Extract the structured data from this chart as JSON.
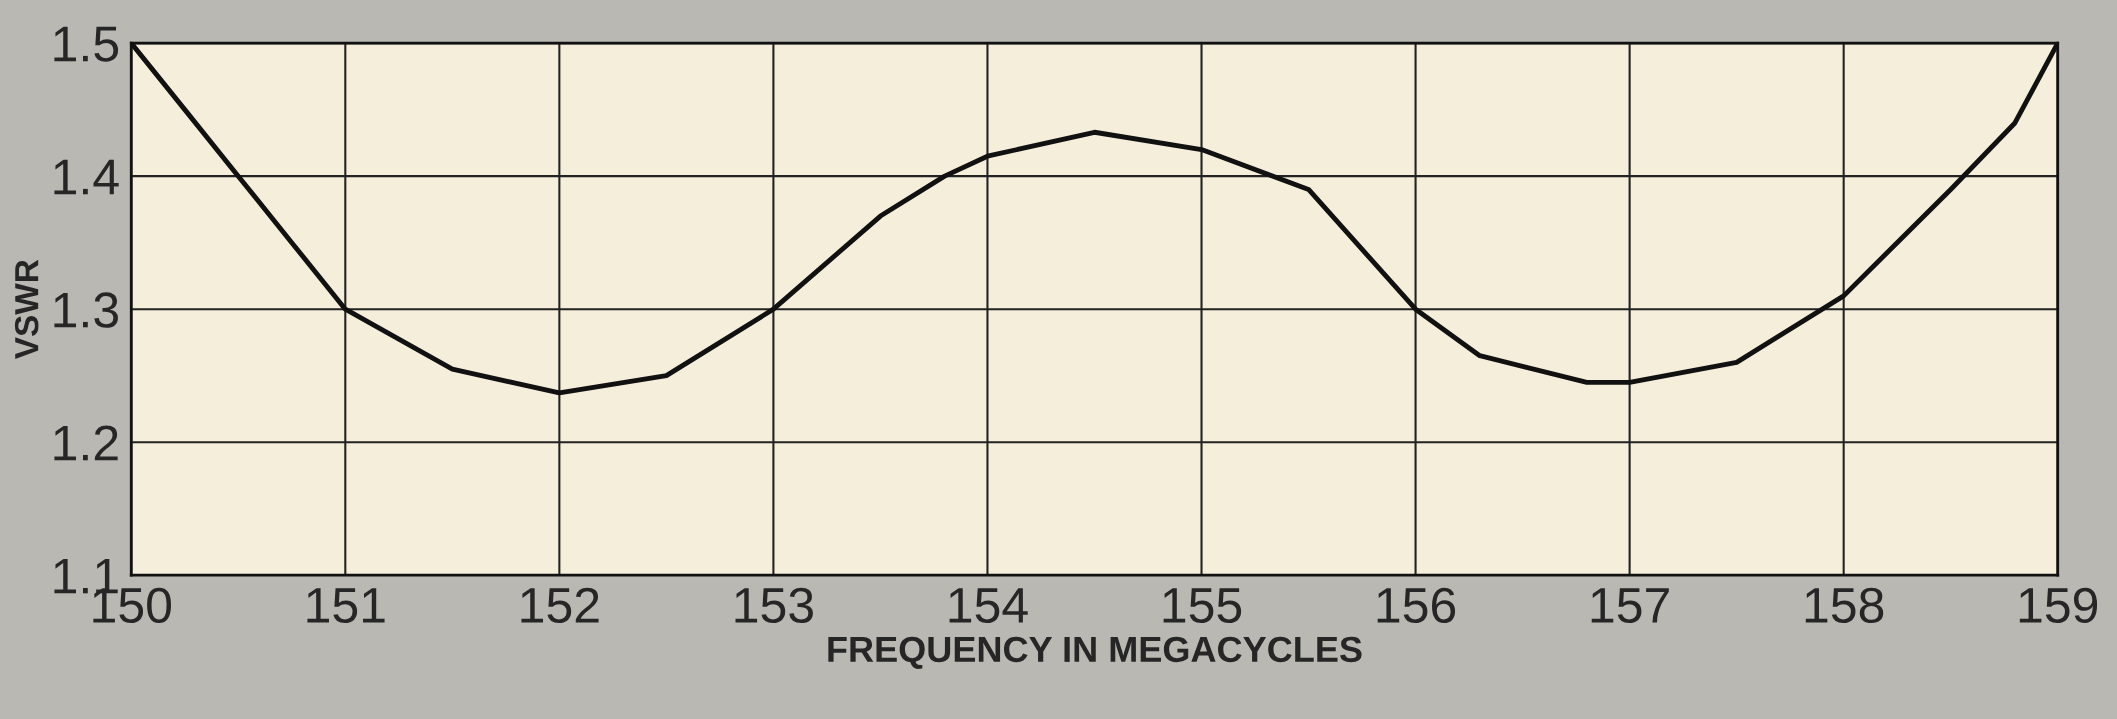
{
  "chart_data": {
    "type": "line",
    "xlabel": "FREQUENCY IN MEGACYCLES",
    "ylabel": "VSWR",
    "x": [
      150,
      150.25,
      150.5,
      150.75,
      151,
      151.5,
      152,
      152.5,
      153,
      153.5,
      153.8,
      154,
      154.5,
      155,
      155.5,
      156,
      156.3,
      156.8,
      157,
      157.5,
      158,
      158.5,
      158.8,
      159
    ],
    "series": [
      {
        "color": "#111111",
        "values": [
          1.5,
          1.45,
          1.4,
          1.35,
          1.3,
          1.255,
          1.237,
          1.25,
          1.3,
          1.37,
          1.4,
          1.415,
          1.433,
          1.42,
          1.39,
          1.3,
          1.265,
          1.245,
          1.245,
          1.26,
          1.31,
          1.39,
          1.44,
          1.5
        ]
      }
    ],
    "xlim": [
      150,
      159
    ],
    "xticks": [
      150,
      151,
      152,
      153,
      154,
      155,
      156,
      157,
      158,
      159
    ],
    "ylim": [
      1.1,
      1.5
    ],
    "yticks": [
      1.1,
      1.2,
      1.3,
      1.4,
      1.5
    ],
    "grid": true,
    "marker": "none",
    "line_style": "solid",
    "legend": false
  }
}
